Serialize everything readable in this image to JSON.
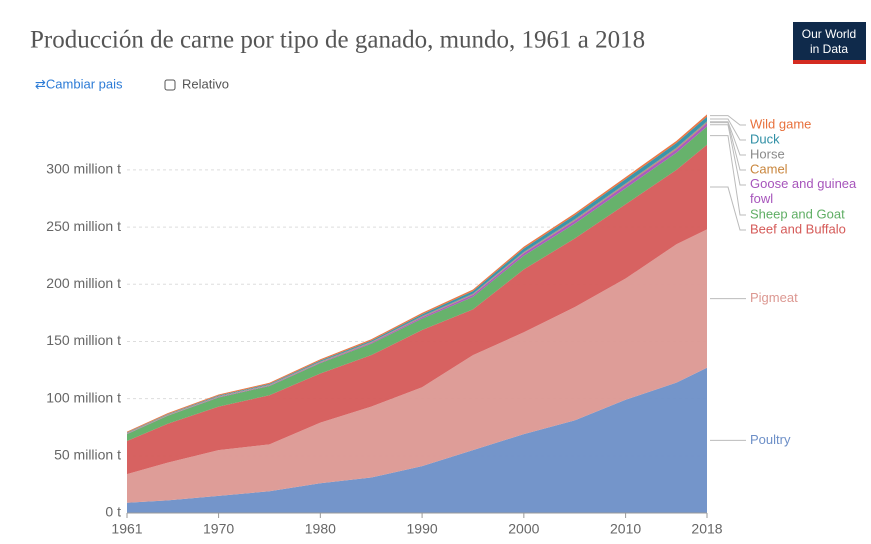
{
  "header": {
    "logo": [
      "Our World",
      "in Data"
    ],
    "change_country": "⇄Cambiar pais",
    "relative": "Relativo"
  },
  "chart_data": {
    "type": "stacked_area",
    "title": "Producción de carne por tipo de ganado, mundo, 1961 a 2018",
    "x": [
      1961,
      1965,
      1970,
      1975,
      1980,
      1985,
      1990,
      1995,
      2000,
      2005,
      2010,
      2015,
      2018
    ],
    "xlim": [
      1961,
      2018
    ],
    "xticks": [
      1961,
      1970,
      1980,
      1990,
      2000,
      2010,
      2018
    ],
    "ylim": [
      0,
      355
    ],
    "yticks": [
      {
        "value": 0,
        "label": "0 t"
      },
      {
        "value": 50,
        "label": "50 million t"
      },
      {
        "value": 100,
        "label": "100 million t"
      },
      {
        "value": 150,
        "label": "150 million t"
      },
      {
        "value": 200,
        "label": "200 million t"
      },
      {
        "value": 250,
        "label": "250 million t"
      },
      {
        "value": 300,
        "label": "300 million t"
      }
    ],
    "grid": true,
    "series": [
      {
        "name": "Poultry",
        "color": "#6d8fc7",
        "values": [
          9,
          11,
          15,
          19,
          26,
          31,
          41,
          55,
          69,
          81,
          99,
          114,
          127
        ]
      },
      {
        "name": "Pigmeat",
        "color": "#dc9892",
        "values": [
          25,
          33,
          40,
          41,
          53,
          62,
          69,
          83,
          89,
          99,
          106,
          121,
          121
        ]
      },
      {
        "name": "Beef and Buffalo",
        "color": "#d55a58",
        "values": [
          29,
          34,
          38,
          43,
          43,
          45,
          50,
          40,
          55,
          60,
          65,
          65,
          74
        ]
      },
      {
        "name": "Sheep and Goat",
        "color": "#5fae64",
        "values": [
          6,
          7,
          8,
          8,
          9,
          10,
          10,
          11,
          12,
          13,
          14,
          15,
          16
        ]
      },
      {
        "name": "Goose and guinea fowl",
        "color": "#a654bb",
        "values": [
          0.3,
          0.3,
          0.4,
          0.5,
          0.6,
          0.8,
          1.2,
          1.7,
          2.2,
          2.5,
          2.8,
          3,
          3
        ]
      },
      {
        "name": "Camel",
        "color": "#c9863d",
        "values": [
          0.2,
          0.2,
          0.2,
          0.2,
          0.3,
          0.3,
          0.3,
          0.4,
          0.4,
          0.5,
          0.5,
          0.6,
          0.6
        ]
      },
      {
        "name": "Horse",
        "color": "#8a8a8a",
        "values": [
          0.6,
          0.6,
          0.6,
          0.6,
          0.6,
          0.6,
          0.7,
          0.7,
          0.7,
          0.8,
          0.8,
          0.9,
          0.9
        ]
      },
      {
        "name": "Duck",
        "color": "#2f8fa5",
        "values": [
          0.3,
          0.4,
          0.5,
          0.6,
          0.8,
          1,
          1.5,
          2.2,
          3,
          3.5,
          3.8,
          4,
          4
        ]
      },
      {
        "name": "Wild game",
        "color": "#e8713c",
        "values": [
          0.8,
          0.8,
          0.9,
          1,
          1.1,
          1.2,
          1.3,
          1.4,
          1.6,
          1.7,
          1.8,
          1.9,
          2
        ]
      }
    ]
  }
}
